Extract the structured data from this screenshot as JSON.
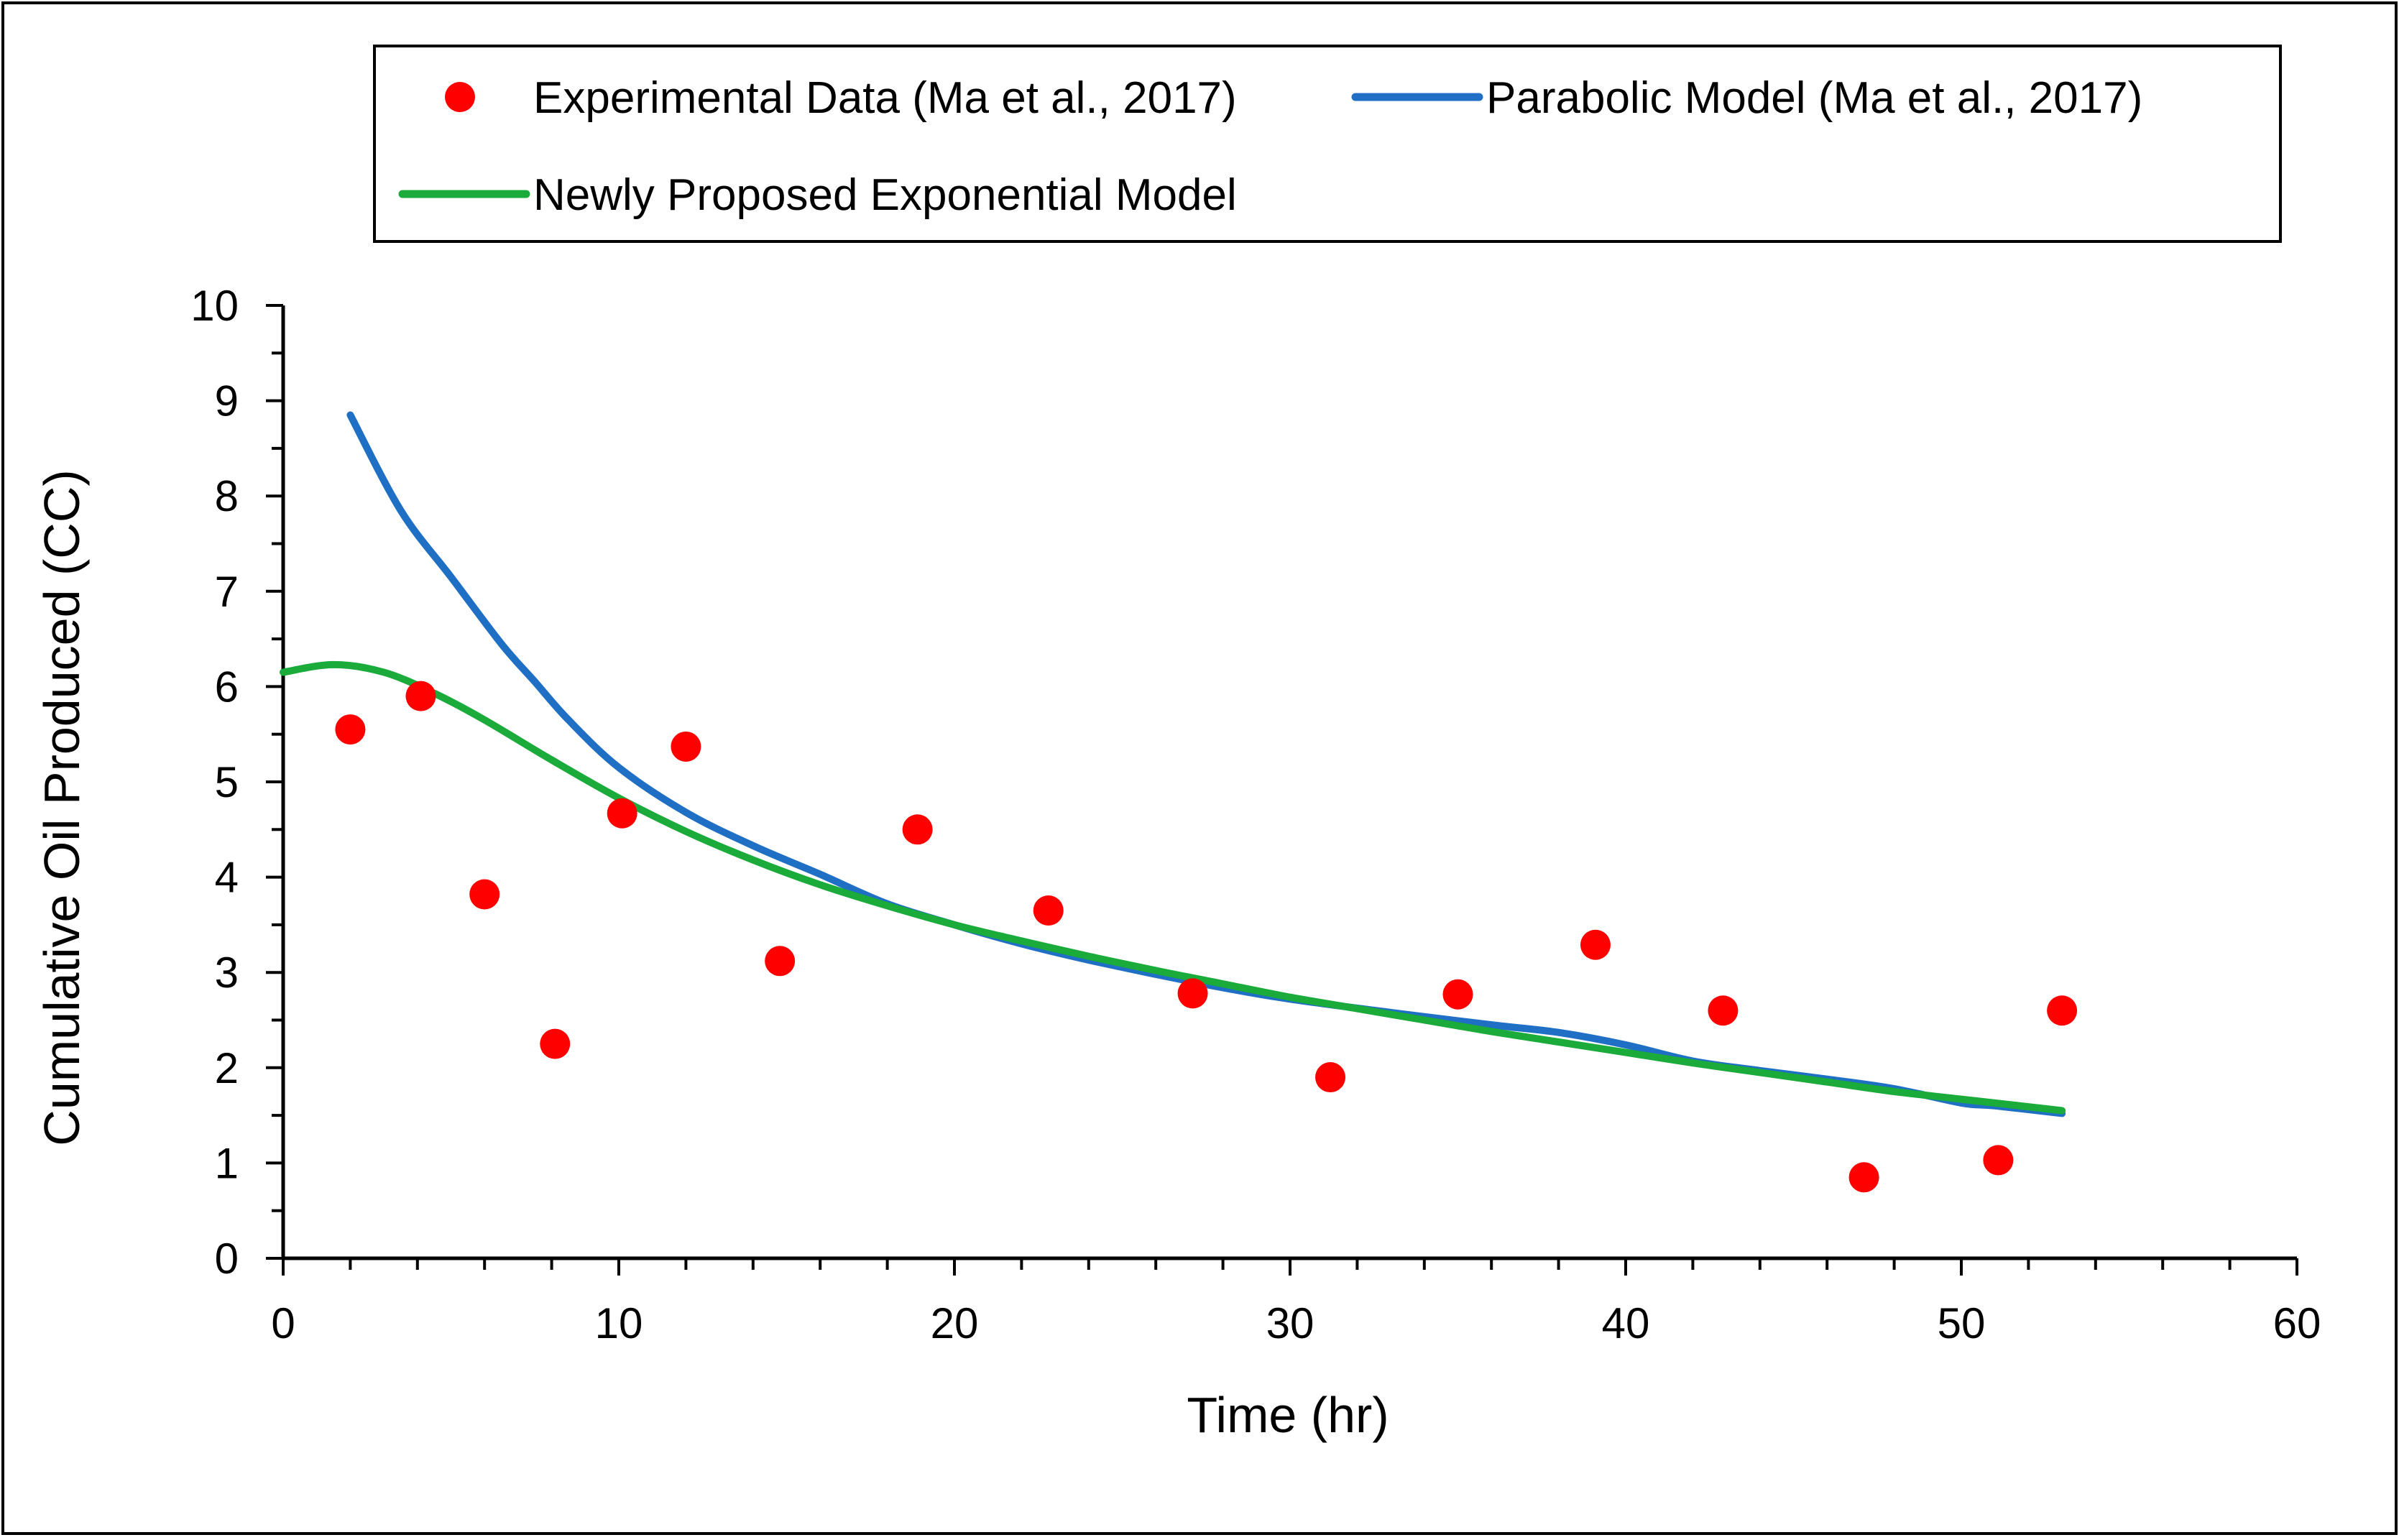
{
  "chart_data": {
    "type": "scatter",
    "title": "",
    "xlabel": "Time (hr)",
    "ylabel": "Cumulative Oil Produced (CC)",
    "xlim": [
      0,
      60
    ],
    "ylim": [
      0,
      10
    ],
    "xticks": [
      0,
      10,
      20,
      30,
      40,
      50,
      60
    ],
    "yticks": [
      0,
      1,
      2,
      3,
      4,
      5,
      6,
      7,
      8,
      9,
      10
    ],
    "grid": false,
    "legend_position": "top",
    "series": [
      {
        "name": "Experimental Data (Ma et al., 2017)",
        "kind": "scatter",
        "color": "#ff0000",
        "x": [
          2,
          4.1,
          6,
          8.1,
          10.1,
          12,
          14.8,
          18.9,
          22.8,
          27.1,
          31.2,
          35,
          39.1,
          42.9,
          47.1,
          51.1,
          53
        ],
        "y": [
          5.55,
          5.9,
          3.82,
          2.25,
          4.67,
          5.37,
          3.12,
          4.5,
          3.65,
          2.78,
          1.9,
          2.77,
          3.29,
          2.6,
          0.85,
          1.03,
          2.6
        ]
      },
      {
        "name": "Parabolic Model (Ma et al., 2017)",
        "kind": "line",
        "color": "#1f6fc4",
        "x": [
          2,
          3.5,
          5,
          6.5,
          7.5,
          8.5,
          10,
          12,
          14,
          16,
          18,
          20,
          22,
          24,
          26,
          28,
          30,
          33,
          36,
          38,
          40,
          42,
          44,
          46,
          48,
          50,
          51,
          53
        ],
        "y": [
          8.85,
          7.85,
          7.15,
          6.45,
          6.05,
          5.65,
          5.15,
          4.68,
          4.33,
          4.03,
          3.72,
          3.5,
          3.3,
          3.13,
          2.98,
          2.84,
          2.72,
          2.58,
          2.45,
          2.37,
          2.24,
          2.07,
          1.97,
          1.88,
          1.78,
          1.63,
          1.6,
          1.52
        ]
      },
      {
        "name": "Newly Proposed Exponential Model",
        "kind": "line",
        "color": "#1aab3a",
        "x": [
          0,
          1.5,
          3,
          4.5,
          6,
          8,
          10,
          12,
          14,
          16,
          18,
          20,
          22,
          24,
          26,
          28,
          30,
          32,
          34,
          36,
          38,
          40,
          42,
          44,
          46,
          48,
          50,
          53
        ],
        "y": [
          6.15,
          6.23,
          6.15,
          5.93,
          5.65,
          5.23,
          4.83,
          4.48,
          4.18,
          3.92,
          3.7,
          3.5,
          3.33,
          3.17,
          3.02,
          2.88,
          2.74,
          2.62,
          2.5,
          2.38,
          2.27,
          2.16,
          2.05,
          1.95,
          1.85,
          1.75,
          1.67,
          1.55
        ]
      }
    ]
  }
}
